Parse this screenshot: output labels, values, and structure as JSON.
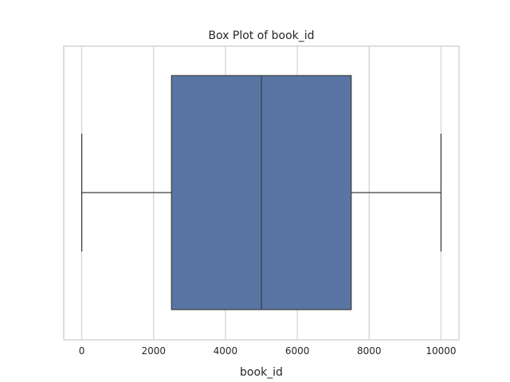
{
  "chart_data": {
    "type": "box",
    "title": "Box Plot of book_id",
    "xlabel": "book_id",
    "ylabel": "",
    "orientation": "horizontal",
    "xlim": [
      -500,
      10500
    ],
    "xticks": [
      0,
      2000,
      4000,
      6000,
      8000,
      10000
    ],
    "xtick_labels": [
      "0",
      "2000",
      "4000",
      "6000",
      "8000",
      "10000"
    ],
    "grid": true,
    "box": {
      "min": 1,
      "q1": 2500,
      "median": 5000,
      "q3": 7500,
      "max": 10000
    },
    "colors": {
      "box_fill": "#5975a4",
      "lines": "#3f3f3f",
      "grid": "#d9d9d9",
      "frame": "#cccccc"
    }
  }
}
